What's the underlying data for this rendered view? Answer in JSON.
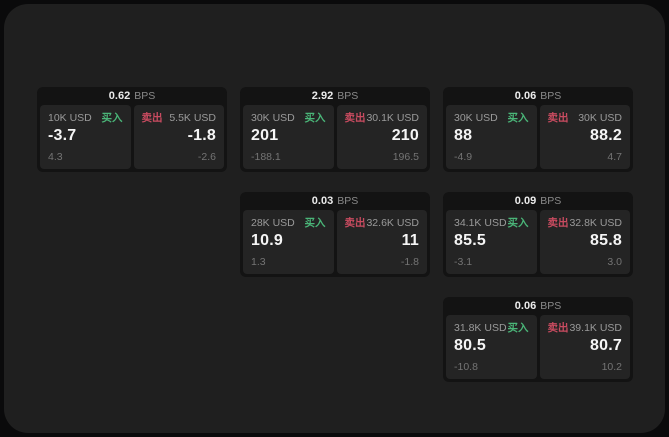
{
  "colors": {
    "background": "#0a0a0b",
    "surface": "#1f1f1f",
    "card": "#131313",
    "tile": "#242424",
    "buy": "#4ab578",
    "sell": "#c94b60",
    "text_primary": "#f5f5f5",
    "text_secondary": "#9a9a9a",
    "text_dim": "#747474"
  },
  "cards": [
    {
      "row": 1,
      "col": 1,
      "bps": "0.62",
      "unit": "BPS",
      "buy": {
        "amount": "10K USD",
        "side": "买入",
        "value": "-3.7",
        "delta": "4.3"
      },
      "sell": {
        "amount": "5.5K USD",
        "side": "卖出",
        "value": "-1.8",
        "delta": "-2.6"
      }
    },
    {
      "row": 1,
      "col": 2,
      "bps": "2.92",
      "unit": "BPS",
      "buy": {
        "amount": "30K USD",
        "side": "买入",
        "value": "201",
        "delta": "-188.1"
      },
      "sell": {
        "amount": "30.1K USD",
        "side": "卖出",
        "value": "210",
        "delta": "196.5"
      }
    },
    {
      "row": 1,
      "col": 3,
      "bps": "0.06",
      "unit": "BPS",
      "buy": {
        "amount": "30K USD",
        "side": "买入",
        "value": "88",
        "delta": "-4.9"
      },
      "sell": {
        "amount": "30K USD",
        "side": "卖出",
        "value": "88.2",
        "delta": "4.7"
      }
    },
    {
      "row": 2,
      "col": 2,
      "bps": "0.03",
      "unit": "BPS",
      "buy": {
        "amount": "28K USD",
        "side": "买入",
        "value": "10.9",
        "delta": "1.3"
      },
      "sell": {
        "amount": "32.6K USD",
        "side": "卖出",
        "value": "11",
        "delta": "-1.8"
      }
    },
    {
      "row": 2,
      "col": 3,
      "bps": "0.09",
      "unit": "BPS",
      "buy": {
        "amount": "34.1K USD",
        "side": "买入",
        "value": "85.5",
        "delta": "-3.1"
      },
      "sell": {
        "amount": "32.8K USD",
        "side": "卖出",
        "value": "85.8",
        "delta": "3.0"
      }
    },
    {
      "row": 3,
      "col": 3,
      "bps": "0.06",
      "unit": "BPS",
      "buy": {
        "amount": "31.8K USD",
        "side": "买入",
        "value": "80.5",
        "delta": "-10.8"
      },
      "sell": {
        "amount": "39.1K USD",
        "side": "卖出",
        "value": "80.7",
        "delta": "10.2"
      }
    }
  ]
}
